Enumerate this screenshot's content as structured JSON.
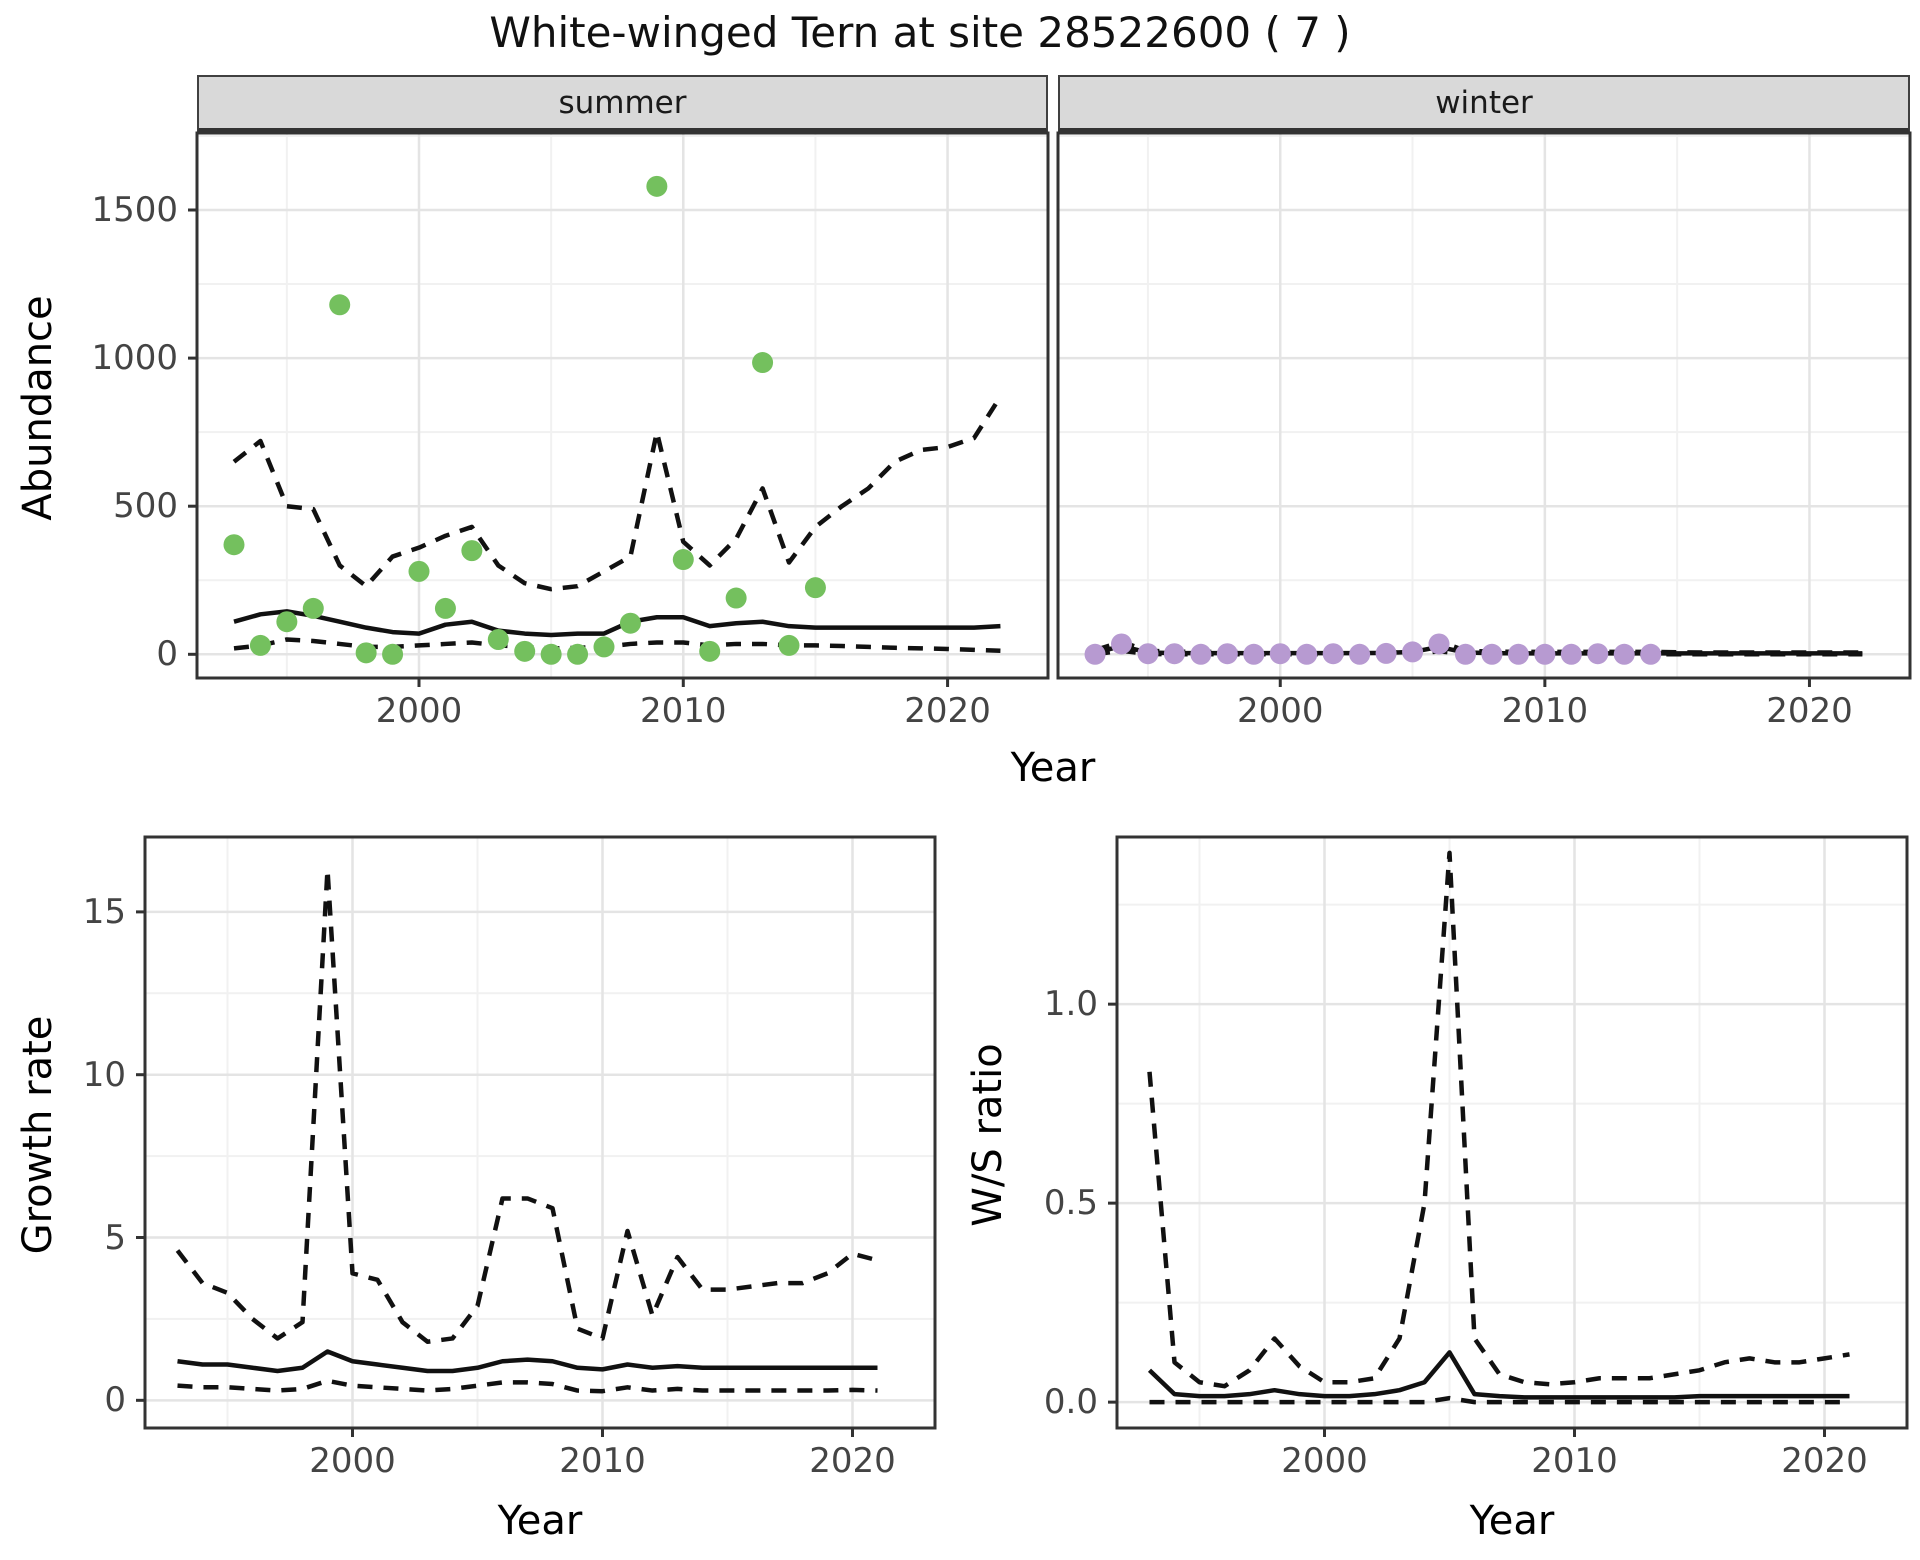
{
  "title": "White-winged Tern at site 28522600 ( 7 )",
  "labels": {
    "abundance": "Abundance",
    "year": "Year",
    "growth_rate": "Growth rate",
    "ws_ratio": "W/S ratio"
  },
  "colors": {
    "summer_point": "#74c05e",
    "winter_point": "#b79ad1",
    "line": "#111111",
    "grid_major": "#e4e4e4",
    "grid_minor": "#f1f1f1",
    "panel_border": "#333333",
    "strip_bg": "#d9d9d9",
    "tick_text": "#444444"
  },
  "chart_data": [
    {
      "id": "summer-abundance",
      "type": "scatter+line",
      "facet_label": "summer",
      "xlabel": "Year",
      "ylabel": "Abundance",
      "xlim": [
        1991.6,
        2023.8
      ],
      "ylim": [
        -80,
        1760
      ],
      "xticks": {
        "values": [
          2000,
          2010,
          2020
        ],
        "labels": [
          "2000",
          "2010",
          "2020"
        ]
      },
      "xminor": [
        1995,
        2005,
        2015
      ],
      "yticks": {
        "values": [
          0,
          500,
          1000,
          1500
        ],
        "labels": [
          "0",
          "500",
          "1000",
          "1500"
        ]
      },
      "yminor": [
        250,
        750,
        1250,
        1750
      ],
      "points": {
        "color": "#74c05e",
        "years": [
          1993,
          1994,
          1995,
          1996,
          1997,
          1998,
          1999,
          2000,
          2001,
          2002,
          2003,
          2004,
          2005,
          2006,
          2007,
          2008,
          2009,
          2010,
          2011,
          2012,
          2013,
          2014,
          2015
        ],
        "values": [
          370,
          30,
          110,
          155,
          1180,
          5,
          0,
          280,
          155,
          350,
          50,
          10,
          0,
          0,
          25,
          105,
          1580,
          320,
          10,
          190,
          985,
          30,
          225
        ]
      },
      "lines": {
        "years": [
          1993,
          1994,
          1995,
          1996,
          1997,
          1998,
          1999,
          2000,
          2001,
          2002,
          2003,
          2004,
          2005,
          2006,
          2007,
          2008,
          2009,
          2010,
          2011,
          2012,
          2013,
          2014,
          2015,
          2016,
          2017,
          2018,
          2019,
          2020,
          2021,
          2022
        ],
        "upper": [
          650,
          720,
          500,
          490,
          300,
          230,
          330,
          360,
          400,
          430,
          300,
          240,
          220,
          230,
          280,
          330,
          750,
          380,
          300,
          390,
          560,
          310,
          430,
          500,
          560,
          650,
          690,
          700,
          730,
          870
        ],
        "median": [
          110,
          135,
          145,
          130,
          110,
          90,
          75,
          70,
          100,
          110,
          80,
          70,
          65,
          70,
          70,
          110,
          125,
          125,
          95,
          105,
          110,
          95,
          90,
          90,
          90,
          90,
          90,
          90,
          90,
          95
        ],
        "lower": [
          20,
          30,
          50,
          45,
          35,
          25,
          25,
          30,
          35,
          40,
          30,
          25,
          20,
          22,
          25,
          35,
          40,
          40,
          30,
          35,
          35,
          30,
          30,
          28,
          25,
          22,
          20,
          18,
          15,
          12
        ]
      }
    },
    {
      "id": "winter-abundance",
      "type": "scatter+line",
      "facet_label": "winter",
      "xlabel": "Year",
      "ylabel": "Abundance",
      "xlim": [
        1991.6,
        2023.8
      ],
      "ylim": [
        -80,
        1760
      ],
      "xticks": {
        "values": [
          2000,
          2010,
          2020
        ],
        "labels": [
          "2000",
          "2010",
          "2020"
        ]
      },
      "xminor": [
        1995,
        2005,
        2015
      ],
      "yticks": {
        "values": [],
        "labels": []
      },
      "yminor": [
        250,
        750,
        1250,
        1750
      ],
      "ygrid_major": [
        0,
        500,
        1000,
        1500
      ],
      "points": {
        "color": "#b79ad1",
        "years": [
          1993,
          1994,
          1995,
          1996,
          1997,
          1998,
          1999,
          2000,
          2001,
          2002,
          2003,
          2004,
          2005,
          2006,
          2007,
          2008,
          2009,
          2010,
          2011,
          2012,
          2013,
          2014
        ],
        "values": [
          0,
          35,
          2,
          2,
          0,
          2,
          0,
          2,
          0,
          2,
          0,
          3,
          8,
          35,
          0,
          0,
          0,
          0,
          0,
          2,
          0,
          0
        ]
      },
      "lines": {
        "years": [
          1993,
          1994,
          1995,
          1996,
          1997,
          1998,
          1999,
          2000,
          2001,
          2002,
          2003,
          2004,
          2005,
          2006,
          2007,
          2008,
          2009,
          2010,
          2011,
          2012,
          2013,
          2014,
          2015,
          2016,
          2017,
          2018,
          2019,
          2020,
          2021,
          2022
        ],
        "upper": [
          14,
          42,
          12,
          9,
          8,
          8,
          8,
          8,
          8,
          8,
          8,
          10,
          16,
          44,
          12,
          9,
          8,
          8,
          8,
          8,
          8,
          8,
          7,
          6,
          6,
          6,
          6,
          6,
          6,
          6
        ],
        "median": [
          5,
          28,
          6,
          4,
          4,
          4,
          4,
          4,
          4,
          4,
          4,
          5,
          8,
          25,
          6,
          4,
          3,
          3,
          3,
          3,
          3,
          3,
          3,
          3,
          3,
          3,
          3,
          3,
          3,
          3
        ],
        "lower": [
          0,
          12,
          1,
          0,
          0,
          0,
          0,
          0,
          0,
          0,
          0,
          0,
          1,
          10,
          1,
          0,
          0,
          0,
          0,
          0,
          0,
          0,
          0,
          0,
          0,
          0,
          0,
          0,
          0,
          0
        ]
      }
    },
    {
      "id": "growth-rate",
      "type": "line",
      "facet_label": "",
      "xlabel": "Year",
      "ylabel": "Growth rate",
      "xlim": [
        1991.7,
        2023.3
      ],
      "ylim": [
        -0.85,
        17.3
      ],
      "xticks": {
        "values": [
          2000,
          2010,
          2020
        ],
        "labels": [
          "2000",
          "2010",
          "2020"
        ]
      },
      "xminor": [
        1995,
        2005,
        2015
      ],
      "yticks": {
        "values": [
          0,
          5,
          10,
          15
        ],
        "labels": [
          "0",
          "5",
          "10",
          "15"
        ]
      },
      "yminor": [
        2.5,
        7.5,
        12.5
      ],
      "lines": {
        "years": [
          1993,
          1994,
          1995,
          1996,
          1997,
          1998,
          1999,
          2000,
          2001,
          2002,
          2003,
          2004,
          2005,
          2006,
          2007,
          2008,
          2009,
          2010,
          2011,
          2012,
          2013,
          2014,
          2015,
          2016,
          2017,
          2018,
          2019,
          2020,
          2021
        ],
        "upper": [
          4.6,
          3.6,
          3.3,
          2.5,
          1.9,
          2.4,
          16.3,
          3.9,
          3.7,
          2.4,
          1.8,
          1.9,
          2.9,
          6.2,
          6.2,
          5.9,
          2.2,
          1.9,
          5.2,
          2.6,
          4.4,
          3.4,
          3.4,
          3.5,
          3.6,
          3.6,
          3.9,
          4.5,
          4.3
        ],
        "median": [
          1.2,
          1.1,
          1.1,
          1.0,
          0.9,
          1.0,
          1.5,
          1.2,
          1.1,
          1.0,
          0.9,
          0.9,
          1.0,
          1.2,
          1.25,
          1.2,
          1.0,
          0.95,
          1.1,
          1.0,
          1.05,
          1.0,
          1.0,
          1.0,
          1.0,
          1.0,
          1.0,
          1.0,
          1.0
        ],
        "lower": [
          0.45,
          0.4,
          0.4,
          0.35,
          0.3,
          0.35,
          0.6,
          0.45,
          0.4,
          0.35,
          0.3,
          0.35,
          0.45,
          0.55,
          0.55,
          0.5,
          0.3,
          0.28,
          0.4,
          0.3,
          0.35,
          0.3,
          0.3,
          0.3,
          0.3,
          0.3,
          0.3,
          0.32,
          0.3
        ]
      }
    },
    {
      "id": "ws-ratio",
      "type": "line",
      "facet_label": "",
      "xlabel": "Year",
      "ylabel": "W/S ratio",
      "xlim": [
        1991.7,
        2023.3
      ],
      "ylim": [
        -0.065,
        1.42
      ],
      "xticks": {
        "values": [
          2000,
          2010,
          2020
        ],
        "labels": [
          "2000",
          "2010",
          "2020"
        ]
      },
      "xminor": [
        1995,
        2005,
        2015
      ],
      "yticks": {
        "values": [
          0,
          0.5,
          1.0
        ],
        "labels": [
          "0.0",
          "0.5",
          "1.0"
        ]
      },
      "yminor": [
        0.25,
        0.75,
        1.25
      ],
      "lines": {
        "years": [
          1993,
          1994,
          1995,
          1996,
          1997,
          1998,
          1999,
          2000,
          2001,
          2002,
          2003,
          2004,
          2005,
          2006,
          2007,
          2008,
          2009,
          2010,
          2011,
          2012,
          2013,
          2014,
          2015,
          2016,
          2017,
          2018,
          2019,
          2020,
          2021
        ],
        "upper": [
          0.83,
          0.1,
          0.05,
          0.04,
          0.08,
          0.16,
          0.09,
          0.05,
          0.05,
          0.06,
          0.16,
          0.5,
          1.38,
          0.16,
          0.07,
          0.05,
          0.045,
          0.05,
          0.06,
          0.06,
          0.06,
          0.07,
          0.08,
          0.1,
          0.11,
          0.1,
          0.1,
          0.11,
          0.12
        ],
        "median": [
          0.08,
          0.02,
          0.015,
          0.015,
          0.02,
          0.03,
          0.02,
          0.015,
          0.015,
          0.02,
          0.03,
          0.05,
          0.125,
          0.02,
          0.015,
          0.012,
          0.012,
          0.012,
          0.012,
          0.012,
          0.012,
          0.012,
          0.015,
          0.015,
          0.015,
          0.015,
          0.015,
          0.015,
          0.015
        ],
        "lower": [
          0,
          0,
          0,
          0,
          0,
          0,
          0,
          0,
          0,
          0,
          0,
          0,
          0.01,
          0,
          0,
          0,
          0,
          0,
          0,
          0,
          0,
          0,
          0,
          0,
          0,
          0,
          0,
          0,
          0
        ]
      }
    }
  ]
}
